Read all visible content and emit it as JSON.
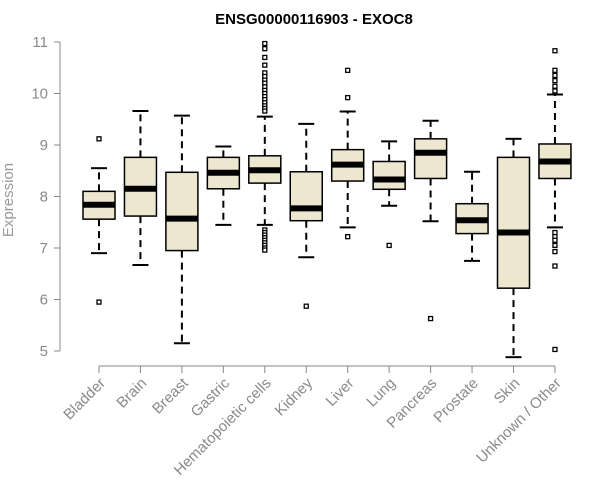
{
  "chart_data": {
    "type": "boxplot",
    "title": "ENSG00000116903 - EXOC8",
    "xlabel": "",
    "ylabel": "Expression",
    "ylim": [
      4.8,
      11.1
    ],
    "yticks": [
      5,
      6,
      7,
      8,
      9,
      10,
      11
    ],
    "colors": {
      "box_fill": "#ede7cf",
      "stroke": "#000000",
      "axis": "#888888",
      "label": "#8a8a8a"
    },
    "categories": [
      "Bladder",
      "Brain",
      "Breast",
      "Gastric",
      "Hematopoietic cells",
      "Kidney",
      "Liver",
      "Lung",
      "Pancreas",
      "Prostate",
      "Skin",
      "Unknown / Other"
    ],
    "series": [
      {
        "name": "Bladder",
        "whisker_low": 6.9,
        "q1": 7.56,
        "median": 7.84,
        "q3": 8.1,
        "whisker_high": 8.55,
        "outliers": [
          9.12,
          5.95
        ]
      },
      {
        "name": "Brain",
        "whisker_low": 6.67,
        "q1": 7.62,
        "median": 8.15,
        "q3": 8.76,
        "whisker_high": 9.66,
        "outliers": []
      },
      {
        "name": "Breast",
        "whisker_low": 5.15,
        "q1": 6.95,
        "median": 7.57,
        "q3": 8.47,
        "whisker_high": 9.57,
        "outliers": []
      },
      {
        "name": "Gastric",
        "whisker_low": 7.45,
        "q1": 8.15,
        "median": 8.46,
        "q3": 8.76,
        "whisker_high": 8.97,
        "outliers": []
      },
      {
        "name": "Hematopoietic cells",
        "whisker_low": 7.45,
        "q1": 8.26,
        "median": 8.51,
        "q3": 8.79,
        "whisker_high": 9.55,
        "outliers": [
          10.97,
          10.87,
          10.7,
          10.55,
          10.4,
          10.33,
          10.26,
          10.2,
          10.13,
          10.06,
          10.0,
          9.94,
          9.88,
          9.82,
          9.76,
          9.71,
          9.66,
          7.35,
          7.3,
          7.25,
          7.2,
          7.15,
          7.1,
          7.05,
          7.0,
          6.96
        ]
      },
      {
        "name": "Kidney",
        "whisker_low": 6.82,
        "q1": 7.53,
        "median": 7.77,
        "q3": 8.48,
        "whisker_high": 9.41,
        "outliers": [
          5.87
        ]
      },
      {
        "name": "Liver",
        "whisker_low": 7.4,
        "q1": 8.3,
        "median": 8.62,
        "q3": 8.91,
        "whisker_high": 9.65,
        "outliers": [
          10.45,
          9.92,
          7.22
        ]
      },
      {
        "name": "Lung",
        "whisker_low": 7.82,
        "q1": 8.14,
        "median": 8.33,
        "q3": 8.68,
        "whisker_high": 9.07,
        "outliers": [
          7.05
        ]
      },
      {
        "name": "Pancreas",
        "whisker_low": 7.52,
        "q1": 8.35,
        "median": 8.85,
        "q3": 9.12,
        "whisker_high": 9.47,
        "outliers": [
          5.63
        ]
      },
      {
        "name": "Prostate",
        "whisker_low": 6.75,
        "q1": 7.28,
        "median": 7.54,
        "q3": 7.86,
        "whisker_high": 8.48,
        "outliers": []
      },
      {
        "name": "Skin",
        "whisker_low": 4.88,
        "q1": 6.22,
        "median": 7.3,
        "q3": 8.76,
        "whisker_high": 9.12,
        "outliers": []
      },
      {
        "name": "Unknown / Other",
        "whisker_low": 7.4,
        "q1": 8.35,
        "median": 8.68,
        "q3": 9.02,
        "whisker_high": 9.98,
        "outliers": [
          10.83,
          10.45,
          10.35,
          10.25,
          10.14,
          10.05,
          7.3,
          7.22,
          7.15,
          7.05,
          6.93,
          6.65,
          5.03
        ]
      }
    ]
  }
}
